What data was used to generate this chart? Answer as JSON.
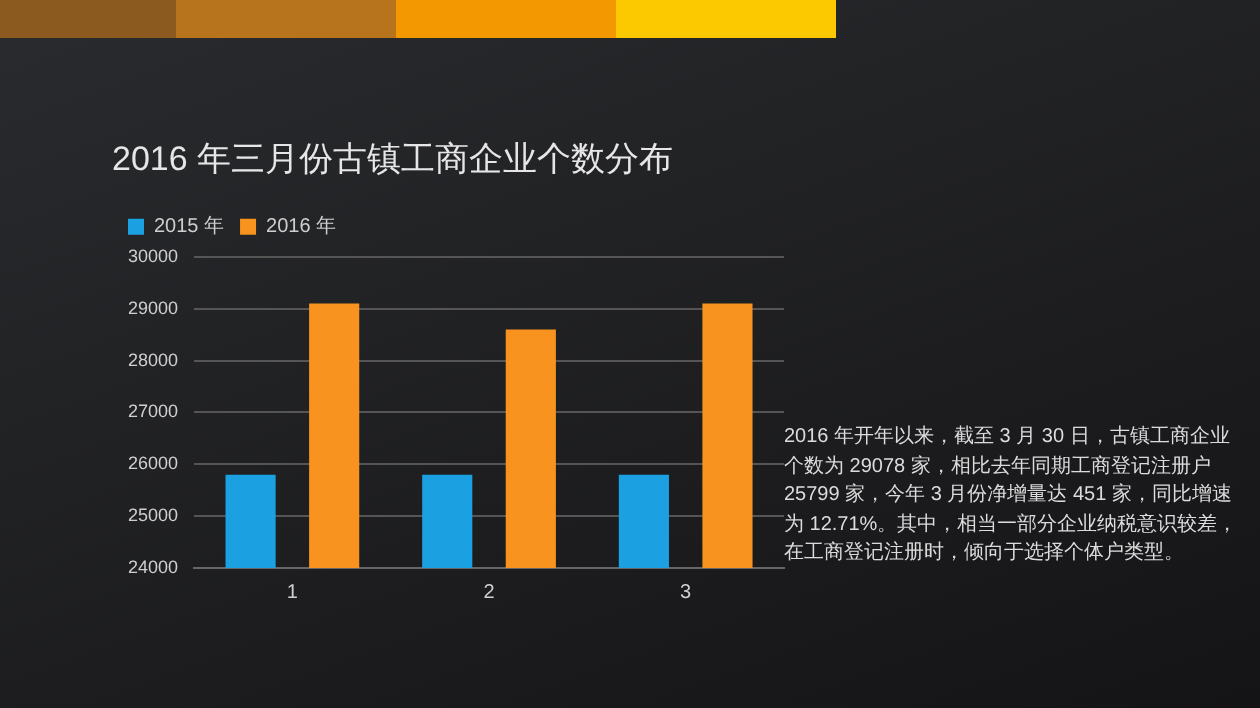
{
  "chart_data": {
    "type": "bar",
    "title": "2016 年三月份古镇工商企业个数分布",
    "categories": [
      "1",
      "2",
      "3"
    ],
    "series": [
      {
        "name": "2015 年",
        "color": "#1ba1e2",
        "values": [
          25800,
          25800,
          25800
        ]
      },
      {
        "name": "2016 年",
        "color": "#f7931e",
        "values": [
          29100,
          28600,
          29100
        ]
      }
    ],
    "ylim": [
      24000,
      30000
    ],
    "yticks": [
      24000,
      25000,
      26000,
      27000,
      28000,
      29000,
      30000
    ],
    "grid": "y",
    "legend": "top left",
    "annotations": [
      "2016 年开年以来，截至 3 月 30 日，古镇工商企业个数为 29078 家，相比去年同期工商登记注册户 25799 家，今年 3 月份净增量达 451 家，同比增速为 12.71%。其中，相当一部分企业纳税意识较差，在工商登记注册时，倾向于选择个体户类型。"
    ]
  }
}
